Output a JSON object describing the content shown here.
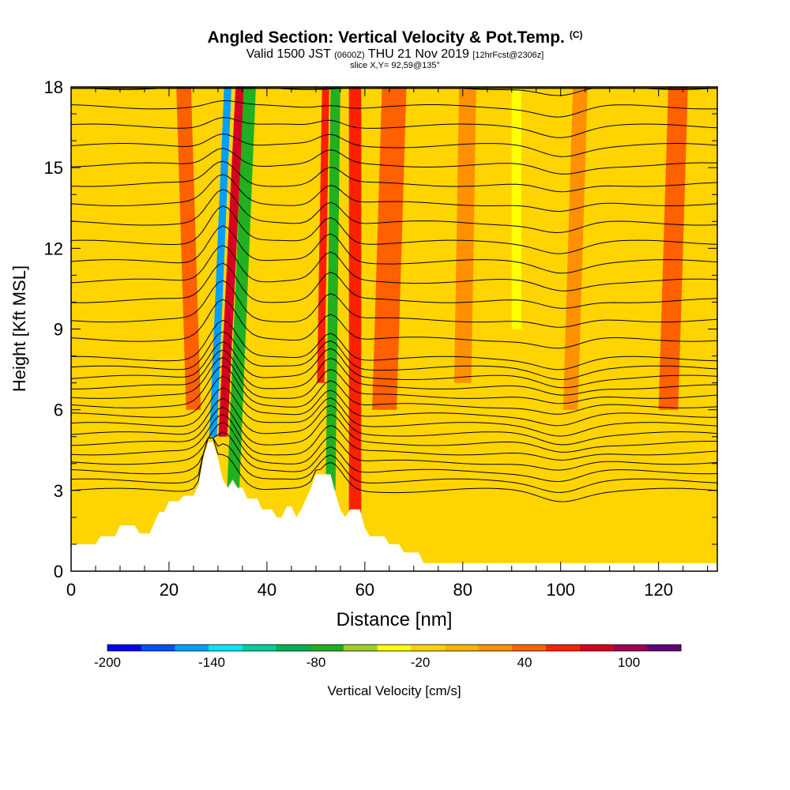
{
  "title": {
    "main": "Angled Section: Vertical Velocity & Pot.Temp.",
    "main_unit": "(C)",
    "valid_prefix": "Valid 1500 JST",
    "valid_zulu": "(0600Z)",
    "valid_date": "THU 21 Nov 2019",
    "valid_fcst": "[12hrFcst@2306z]",
    "slice": "slice X,Y= 92,59@135°"
  },
  "chart_data": {
    "type": "heatmap",
    "xlabel": "Distance [nm]",
    "ylabel": "Height [Kft MSL]",
    "xlim": [
      0,
      132
    ],
    "ylim": [
      0,
      18
    ],
    "x_ticks": [
      0,
      20,
      40,
      60,
      80,
      100,
      120
    ],
    "y_ticks": [
      0,
      3,
      6,
      9,
      12,
      15,
      18
    ],
    "colorbar": {
      "label": "Vertical Velocity [cm/s]",
      "min": -200,
      "max": 130,
      "step": 20,
      "tick_values": [
        -200,
        -140,
        -80,
        -20,
        40,
        100
      ],
      "tick_labels": [
        "-200",
        "-140",
        "-80",
        "-20",
        "40",
        "100"
      ],
      "colors": [
        "#0000ff",
        "#0050ff",
        "#00a0ff",
        "#00e8ff",
        "#00d09a",
        "#00b050",
        "#20b020",
        "#a0d020",
        "#ffff00",
        "#ffd400",
        "#ffb400",
        "#ff9000",
        "#ff6000",
        "#ff2000",
        "#d80020",
        "#a00050",
        "#60007a"
      ]
    },
    "background_velocity": [
      -20,
      0
    ],
    "velocity_bands": [
      {
        "x_top": 32,
        "x_bottom": 29,
        "y_bottom": 5,
        "width": 1.5,
        "value": -150
      },
      {
        "x_top": 34.5,
        "x_bottom": 31,
        "y_bottom": 5,
        "width": 1.8,
        "value": 90
      },
      {
        "x_top": 36.5,
        "x_bottom": 33,
        "y_bottom": 2.5,
        "width": 2.5,
        "value": -80
      },
      {
        "x_top": 23,
        "x_bottom": 25,
        "y_bottom": 6,
        "width": 3,
        "value": 40
      },
      {
        "x_top": 52,
        "x_bottom": 51,
        "y_bottom": 7,
        "width": 1.5,
        "value": 60
      },
      {
        "x_top": 54,
        "x_bottom": 53,
        "y_bottom": 3,
        "width": 2,
        "value": -80
      },
      {
        "x_top": 58,
        "x_bottom": 58,
        "y_bottom": 2,
        "width": 2.5,
        "value": 70
      },
      {
        "x_top": 66,
        "x_bottom": 64,
        "y_bottom": 6,
        "width": 5,
        "value": 40
      },
      {
        "x_top": 81,
        "x_bottom": 80,
        "y_bottom": 7,
        "width": 3.5,
        "value": 30
      },
      {
        "x_top": 104,
        "x_bottom": 102,
        "y_bottom": 6,
        "width": 3,
        "value": 30
      },
      {
        "x_top": 124,
        "x_bottom": 122,
        "y_bottom": 6,
        "width": 4,
        "value": 40
      },
      {
        "x_top": 91,
        "x_bottom": 91,
        "y_bottom": 9,
        "width": 2,
        "value": -30
      }
    ],
    "theta_contours": {
      "label": "Potential temperature [C]",
      "interval": 2,
      "lowest_height": 3,
      "count": 32
    },
    "terrain": [
      [
        0,
        1
      ],
      [
        5,
        1
      ],
      [
        6,
        1.3
      ],
      [
        9,
        1.3
      ],
      [
        10,
        1.7
      ],
      [
        13,
        1.7
      ],
      [
        14,
        1.4
      ],
      [
        16,
        1.4
      ],
      [
        17,
        1.8
      ],
      [
        18,
        2.2
      ],
      [
        19,
        2.2
      ],
      [
        20,
        2.6
      ],
      [
        22,
        2.6
      ],
      [
        23,
        2.8
      ],
      [
        25,
        2.8
      ],
      [
        26,
        3.2
      ],
      [
        27,
        4.2
      ],
      [
        28,
        4.8
      ],
      [
        29,
        4.8
      ],
      [
        30,
        4.2
      ],
      [
        31,
        3.4
      ],
      [
        32,
        3.1
      ],
      [
        33,
        3.4
      ],
      [
        34,
        3.1
      ],
      [
        35,
        3.1
      ],
      [
        36,
        2.7
      ],
      [
        38,
        2.7
      ],
      [
        39,
        2.3
      ],
      [
        41,
        2.3
      ],
      [
        42,
        2.0
      ],
      [
        43,
        2.0
      ],
      [
        44,
        2.4
      ],
      [
        45,
        2.4
      ],
      [
        46,
        2.0
      ],
      [
        47,
        2.3
      ],
      [
        48,
        2.7
      ],
      [
        49,
        3.1
      ],
      [
        50,
        3.6
      ],
      [
        53,
        3.6
      ],
      [
        54,
        2.9
      ],
      [
        55,
        2.3
      ],
      [
        56,
        2.0
      ],
      [
        57,
        2.3
      ],
      [
        59,
        2.3
      ],
      [
        60,
        1.6
      ],
      [
        61,
        1.3
      ],
      [
        64,
        1.3
      ],
      [
        65,
        1.0
      ],
      [
        67,
        1.0
      ],
      [
        68,
        0.7
      ],
      [
        71,
        0.7
      ],
      [
        72,
        0.3
      ],
      [
        132,
        0.3
      ]
    ]
  }
}
